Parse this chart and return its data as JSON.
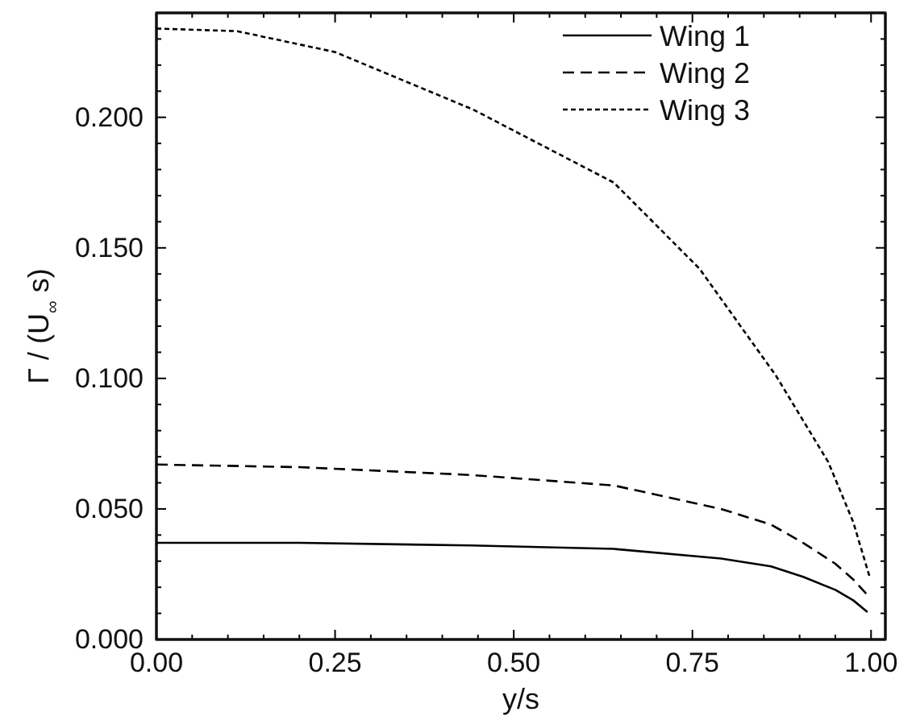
{
  "chart_data": {
    "type": "line",
    "xlabel": "y/s",
    "ylabel": "Γ / (U$_{∞}$ s)",
    "xlim": [
      0,
      1.02
    ],
    "ylim": [
      0,
      0.24
    ],
    "xticks": [
      {
        "value": 0,
        "label": "0.00"
      },
      {
        "value": 0.05,
        "label": null
      },
      {
        "value": 0.1,
        "label": null
      },
      {
        "value": 0.15,
        "label": null
      },
      {
        "value": 0.2,
        "label": null
      },
      {
        "value": 0.25,
        "label": "0.25"
      },
      {
        "value": 0.3,
        "label": null
      },
      {
        "value": 0.35,
        "label": null
      },
      {
        "value": 0.4,
        "label": null
      },
      {
        "value": 0.45,
        "label": null
      },
      {
        "value": 0.5,
        "label": "0.50"
      },
      {
        "value": 0.55,
        "label": null
      },
      {
        "value": 0.6,
        "label": null
      },
      {
        "value": 0.65,
        "label": null
      },
      {
        "value": 0.7,
        "label": null
      },
      {
        "value": 0.75,
        "label": "0.75"
      },
      {
        "value": 0.8,
        "label": null
      },
      {
        "value": 0.85,
        "label": null
      },
      {
        "value": 0.9,
        "label": null
      },
      {
        "value": 0.95,
        "label": null
      },
      {
        "value": 1,
        "label": "1.00"
      }
    ],
    "yticks": [
      {
        "value": 0,
        "label": "0.000"
      },
      {
        "value": 0.01,
        "label": null
      },
      {
        "value": 0.02,
        "label": null
      },
      {
        "value": 0.03,
        "label": null
      },
      {
        "value": 0.04,
        "label": null
      },
      {
        "value": 0.05,
        "label": "0.050"
      },
      {
        "value": 0.06,
        "label": null
      },
      {
        "value": 0.07,
        "label": null
      },
      {
        "value": 0.08,
        "label": null
      },
      {
        "value": 0.09,
        "label": null
      },
      {
        "value": 0.1,
        "label": "0.100"
      },
      {
        "value": 0.11,
        "label": null
      },
      {
        "value": 0.12,
        "label": null
      },
      {
        "value": 0.13,
        "label": null
      },
      {
        "value": 0.14,
        "label": null
      },
      {
        "value": 0.15,
        "label": "0.150"
      },
      {
        "value": 0.16,
        "label": null
      },
      {
        "value": 0.17,
        "label": null
      },
      {
        "value": 0.18,
        "label": null
      },
      {
        "value": 0.19,
        "label": null
      },
      {
        "value": 0.2,
        "label": "0.200"
      },
      {
        "value": 0.21,
        "label": null
      },
      {
        "value": 0.22,
        "label": null
      },
      {
        "value": 0.23,
        "label": null
      }
    ],
    "grid": false,
    "legend": "top right",
    "marker": "none",
    "series": [
      {
        "name": "Wing 1",
        "color": "#000000",
        "line_style": "solid",
        "x": [
          0,
          0.2,
          0.44,
          0.64,
          0.79,
          0.86,
          0.905,
          0.95,
          0.975,
          0.995
        ],
        "values": [
          0.037,
          0.037,
          0.036,
          0.0347,
          0.031,
          0.028,
          0.024,
          0.019,
          0.015,
          0.0105
        ]
      },
      {
        "name": "Wing 2",
        "color": "#000000",
        "line_style": "dashed",
        "x": [
          0,
          0.2,
          0.44,
          0.64,
          0.79,
          0.86,
          0.905,
          0.95,
          0.975,
          0.995
        ],
        "values": [
          0.067,
          0.066,
          0.063,
          0.059,
          0.05,
          0.044,
          0.037,
          0.029,
          0.023,
          0.017
        ]
      },
      {
        "name": "Wing 3",
        "color": "#000000",
        "line_style": "dotted",
        "x": [
          0,
          0.113,
          0.25,
          0.443,
          0.64,
          0.76,
          0.867,
          0.94,
          0.975,
          0.998
        ],
        "values": [
          0.234,
          0.233,
          0.225,
          0.203,
          0.175,
          0.142,
          0.101,
          0.068,
          0.045,
          0.024
        ]
      }
    ]
  }
}
